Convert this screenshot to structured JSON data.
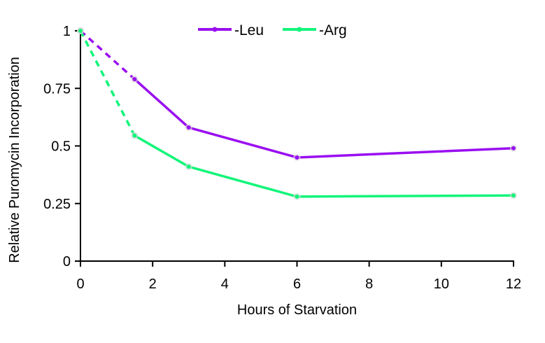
{
  "chart_data": {
    "type": "line",
    "title": "",
    "xlabel": "Hours of Starvation",
    "ylabel": "Relative Puromycin Incorporation",
    "xlim": [
      0,
      12
    ],
    "ylim": [
      0,
      1
    ],
    "xticks": [
      0,
      2,
      4,
      6,
      8,
      10,
      12
    ],
    "yticks": [
      0,
      0.25,
      0.5,
      0.75,
      1
    ],
    "x": [
      0,
      1.5,
      3,
      6,
      12
    ],
    "legend_position": "top-center",
    "grid": false,
    "series": [
      {
        "name": "-Leu",
        "color": "#9a0ff0",
        "values": [
          1,
          0.79,
          0.58,
          0.45,
          0.49
        ],
        "dashed_segment": [
          0,
          1
        ]
      },
      {
        "name": "-Arg",
        "color": "#12f57a",
        "values": [
          1,
          0.545,
          0.41,
          0.28,
          0.285
        ],
        "dashed_segment": [
          0,
          1
        ]
      }
    ]
  }
}
